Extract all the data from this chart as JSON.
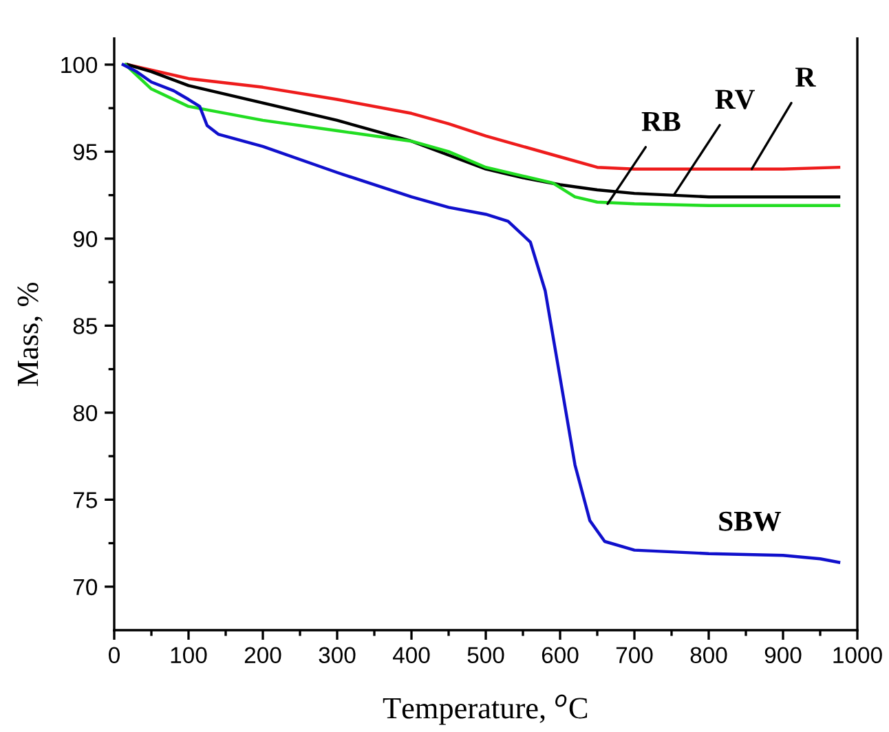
{
  "chart_data": {
    "type": "line",
    "xlabel": "Temperature, $^{o}$C",
    "ylabel": "Mass, %",
    "xlim": [
      0,
      1000
    ],
    "ylim": [
      67.5,
      101.5
    ],
    "xticks": [
      0,
      {
        "value": 50,
        "label": null
      },
      100,
      {
        "value": 150,
        "label": null
      },
      200,
      {
        "value": 250,
        "label": null
      },
      300,
      {
        "value": 350,
        "label": null
      },
      400,
      {
        "value": 450,
        "label": null
      },
      500,
      {
        "value": 550,
        "label": null
      },
      600,
      {
        "value": 650,
        "label": null
      },
      700,
      {
        "value": 750,
        "label": null
      },
      800,
      {
        "value": 850,
        "label": null
      },
      900,
      {
        "value": 950,
        "label": null
      },
      1000
    ],
    "yticks": [
      70,
      {
        "value": 72.5,
        "label": null
      },
      75,
      {
        "value": 77.5,
        "label": null
      },
      80,
      {
        "value": 82.5,
        "label": null
      },
      85,
      {
        "value": 87.5,
        "label": null
      },
      90,
      {
        "value": 92.5,
        "label": null
      },
      95,
      {
        "value": 97.5,
        "label": null
      },
      100
    ],
    "grid": false,
    "legend": false,
    "marker": "none",
    "line_style": "solid",
    "series": [
      {
        "color": "#ee1c1c",
        "x": [
          18,
          100,
          200,
          300,
          400,
          450,
          500,
          550,
          600,
          650,
          700,
          800,
          900,
          975
        ],
        "values": [
          100,
          99.2,
          98.7,
          98.0,
          97.2,
          96.6,
          95.9,
          95.3,
          94.7,
          94.1,
          94.0,
          94.0,
          94.0,
          94.1
        ]
      },
      {
        "color": "#000000",
        "x": [
          18,
          50,
          100,
          200,
          300,
          400,
          450,
          500,
          550,
          600,
          650,
          700,
          800,
          900,
          975
        ],
        "values": [
          100,
          99.6,
          98.8,
          97.8,
          96.8,
          95.6,
          94.8,
          94.0,
          93.5,
          93.1,
          92.8,
          92.6,
          92.4,
          92.4,
          92.4
        ]
      },
      {
        "color": "#22dd22",
        "x": [
          15,
          30,
          50,
          100,
          200,
          300,
          400,
          450,
          500,
          550,
          590,
          620,
          650,
          700,
          800,
          900,
          975
        ],
        "values": [
          100,
          99.4,
          98.6,
          97.6,
          96.8,
          96.2,
          95.6,
          95.0,
          94.1,
          93.6,
          93.2,
          92.4,
          92.1,
          92.0,
          91.9,
          91.9,
          91.9
        ]
      },
      {
        "color": "#1010cc",
        "x": [
          12,
          30,
          50,
          80,
          100,
          115,
          125,
          140,
          200,
          300,
          400,
          450,
          500,
          530,
          560,
          580,
          600,
          620,
          640,
          660,
          700,
          800,
          900,
          950,
          975
        ],
        "values": [
          100,
          99.6,
          99.0,
          98.5,
          98.0,
          97.6,
          96.5,
          96.0,
          95.3,
          93.8,
          92.4,
          91.8,
          91.4,
          91.0,
          89.8,
          87.0,
          82.0,
          77.0,
          73.8,
          72.6,
          72.1,
          71.9,
          71.8,
          71.6,
          71.4
        ]
      }
    ],
    "annotations": [
      {
        "text": "R",
        "x": 858,
        "y": 94.0
      },
      {
        "text": "RV",
        "x": 753,
        "y": 92.5
      },
      {
        "text": "RB",
        "x": 664,
        "y": 92.0
      },
      "SBW"
    ]
  }
}
